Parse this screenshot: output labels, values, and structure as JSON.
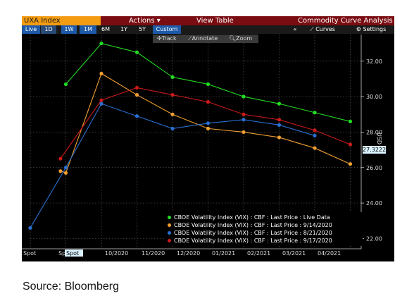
{
  "header": {
    "ticker": "UXA Index",
    "actions_label": "Actions ▾",
    "view_table_label": "View Table",
    "title": "Commodity Curve Analysis"
  },
  "timeframes": [
    "Live",
    "1D",
    "1W",
    "1M",
    "6M",
    "1Y",
    "5Y",
    "Custom"
  ],
  "toolbar_right": {
    "collapse_label": "«",
    "curves_label": "Curves",
    "settings_label": "Settings"
  },
  "chart_tools": {
    "track_label": "Track",
    "annotate_label": "Annotate",
    "zoom_label": "Zoom"
  },
  "colors": {
    "green": "#22dd22",
    "orange": "#f0a030",
    "blue": "#2a6fd1",
    "red": "#cc1a1a",
    "accent": "#f39c12",
    "titlebar": "#7a0d12"
  },
  "chart_data": {
    "type": "line",
    "categories": [
      "Spot",
      "Spot",
      "10/2020",
      "11/2020",
      "12/2020",
      "01/2021",
      "02/2021",
      "03/2021",
      "04/2021",
      ""
    ],
    "x_tick_labels": [
      "Spot",
      "Sp",
      "Spot",
      "10/2020",
      "11/2020",
      "12/2020",
      "01/2021",
      "02/2021",
      "03/2021",
      "04/2021"
    ],
    "ylabel": "USD",
    "ylim": [
      21.5,
      33.5
    ],
    "y_ticks": [
      22,
      24,
      26,
      28,
      30,
      32
    ],
    "y_tick_labels": [
      "22.00",
      "24.00",
      "26.00",
      "28.00",
      "30.00",
      "32.00"
    ],
    "grid": true,
    "series": [
      {
        "name": "CBOE Volatility Index (VIX) : CBF : Last Price : Live Data",
        "color": "#22dd22",
        "points": [
          [
            1,
            30.7
          ],
          [
            2,
            33.0
          ],
          [
            3,
            32.5
          ],
          [
            4,
            31.1
          ],
          [
            5,
            30.7
          ],
          [
            6,
            30.0
          ],
          [
            7,
            29.6
          ],
          [
            8,
            29.1
          ],
          [
            9,
            28.6
          ]
        ]
      },
      {
        "name": "CBOE Volatility Index (VIX) : CBF : Last Price : 9/14/2020",
        "color": "#f0a030",
        "points": [
          [
            0.85,
            25.8
          ],
          [
            1,
            25.7
          ],
          [
            2,
            31.3
          ],
          [
            3,
            30.1
          ],
          [
            4,
            29.0
          ],
          [
            5,
            28.2
          ],
          [
            6,
            28.0
          ],
          [
            7,
            27.7
          ],
          [
            8,
            27.1
          ],
          [
            9,
            26.2
          ]
        ]
      },
      {
        "name": "CBOE Volatility Index (VIX) : CBF : Last Price : 8/21/2020",
        "color": "#2a6fd1",
        "points": [
          [
            0,
            22.6
          ],
          [
            1,
            26.0
          ],
          [
            2,
            29.6
          ],
          [
            3,
            28.9
          ],
          [
            4,
            28.2
          ],
          [
            5,
            28.5
          ],
          [
            6,
            28.7
          ],
          [
            7,
            28.4
          ],
          [
            8,
            27.8
          ]
        ]
      },
      {
        "name": "CBOE Volatility Index (VIX) : CBF : Last Price : 9/17/2020",
        "color": "#cc1a1a",
        "points": [
          [
            0.85,
            26.5
          ],
          [
            2,
            29.8
          ],
          [
            3,
            30.5
          ],
          [
            4,
            30.1
          ],
          [
            5,
            29.7
          ],
          [
            6,
            29.0
          ],
          [
            7,
            28.7
          ],
          [
            8,
            28.1
          ],
          [
            9,
            27.3
          ]
        ]
      }
    ],
    "last_value_label": "27.3222"
  },
  "source": "Source: Bloomberg"
}
